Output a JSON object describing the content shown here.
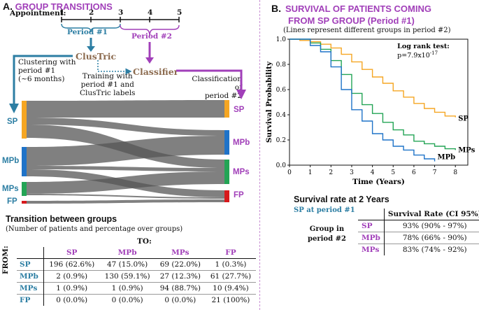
{
  "panel_a": {
    "letter": "A.",
    "title": "GROUP TRANSITIONS",
    "timeline": {
      "label": "Appointment:",
      "ticks": [
        "1",
        "2",
        "3",
        "4",
        "5"
      ],
      "period1": "Period #1",
      "period2": "Period #2"
    },
    "flow": {
      "clustric": "ClusTric",
      "classifier": "Classifier",
      "clustering_note": [
        "Clustering with",
        "period #1",
        "(~6 months)"
      ],
      "training_note": [
        "Training with",
        "period #1 and",
        "ClusTric labels"
      ],
      "classification_note": [
        "Classification of",
        "period #2"
      ]
    },
    "sankey": {
      "left_labels": [
        "SP",
        "MPb",
        "MPs",
        "FP"
      ],
      "right_labels": [
        "SP",
        "MPb",
        "MPs",
        "FP"
      ]
    },
    "table": {
      "title": "Transition between groups",
      "subtitle": "(Number of patients and percentage over groups)",
      "to_label": "TO:",
      "from_label": "FROM:",
      "columns": [
        "SP",
        "MPb",
        "MPs",
        "FP"
      ],
      "rows": [
        {
          "name": "SP",
          "cells": [
            "196 (62.6%)",
            "47 (15.0%)",
            "69 (22.0%)",
            "1 (0.3%)"
          ]
        },
        {
          "name": "MPb",
          "cells": [
            "2 (0.9%)",
            "130 (59.1%)",
            "27 (12.3%)",
            "61 (27.7%)"
          ]
        },
        {
          "name": "MPs",
          "cells": [
            "1 (0.9%)",
            "1 (0.9%)",
            "94 (88.7%)",
            "10 (9.4%)"
          ]
        },
        {
          "name": "FP",
          "cells": [
            "0 (0.0%)",
            "0 (0.0%)",
            "0 (0.0%)",
            "21 (100%)"
          ]
        }
      ]
    }
  },
  "panel_b": {
    "letter": "B.",
    "title_line1": "SURVIVAL OF PATIENTS COMING",
    "title_line2": "FROM SP GROUP (Period #1)",
    "note": "(Lines represent different groups in period #2)",
    "survival_table": {
      "title": "Survival rate at 2 Years",
      "subtitle": "SP at period #1",
      "group_label_1": "Group in",
      "group_label_2": "period #2",
      "column": "Survival Rate (CI 95%)",
      "rows": [
        {
          "name": "SP",
          "value": "93% (90% - 97%)"
        },
        {
          "name": "MPb",
          "value": "78% (66% - 90%)"
        },
        {
          "name": "MPs",
          "value": "83% (74% - 92%)"
        }
      ]
    }
  },
  "colors": {
    "SP": "#f5a623",
    "MPb": "#1f73c8",
    "MPs": "#23a455",
    "FP": "#d7191c",
    "accent": "#a13fb9",
    "teal": "#2c7ea3",
    "brown": "#8c6b4f"
  },
  "chart_data": {
    "type": "line",
    "title": "",
    "xlabel": "Time (Years)",
    "ylabel": "Survival Probability",
    "xlim": [
      0,
      8.6
    ],
    "ylim": [
      0,
      1.0
    ],
    "xticks": [
      0,
      1,
      2,
      3,
      4,
      5,
      6,
      7,
      8
    ],
    "yticks": [
      0.0,
      0.2,
      0.4,
      0.6,
      0.8,
      1.0
    ],
    "annotation_title": "Log rank test:",
    "annotation_value": "p=7.9x10",
    "annotation_exp": "-17",
    "series": [
      {
        "name": "SP",
        "color": "#f5a623",
        "end_label": "SP",
        "x": [
          0,
          0.5,
          1.0,
          1.5,
          2.0,
          2.5,
          3.0,
          3.5,
          4.0,
          4.5,
          5.0,
          5.5,
          6.0,
          6.5,
          7.0,
          7.5,
          8.0
        ],
        "y": [
          1.0,
          0.99,
          0.98,
          0.96,
          0.93,
          0.88,
          0.82,
          0.76,
          0.7,
          0.65,
          0.59,
          0.54,
          0.49,
          0.45,
          0.42,
          0.39,
          0.38
        ]
      },
      {
        "name": "MPs",
        "color": "#23a455",
        "end_label": "MPs",
        "x": [
          0,
          0.5,
          1.0,
          1.5,
          2.0,
          2.5,
          3.0,
          3.5,
          4.0,
          4.5,
          5.0,
          5.5,
          6.0,
          6.5,
          7.0,
          7.5,
          8.0
        ],
        "y": [
          1.0,
          1.0,
          0.97,
          0.92,
          0.83,
          0.72,
          0.57,
          0.48,
          0.41,
          0.34,
          0.28,
          0.24,
          0.19,
          0.17,
          0.15,
          0.13,
          0.12
        ]
      },
      {
        "name": "MPb",
        "color": "#1f73c8",
        "end_label": "MPb",
        "x": [
          0,
          0.5,
          1.0,
          1.5,
          2.0,
          2.5,
          3.0,
          3.5,
          4.0,
          4.5,
          5.0,
          5.5,
          6.0,
          6.5,
          7.0
        ],
        "y": [
          1.0,
          1.0,
          0.95,
          0.9,
          0.78,
          0.6,
          0.44,
          0.35,
          0.25,
          0.2,
          0.15,
          0.12,
          0.08,
          0.05,
          0.03
        ]
      }
    ]
  }
}
